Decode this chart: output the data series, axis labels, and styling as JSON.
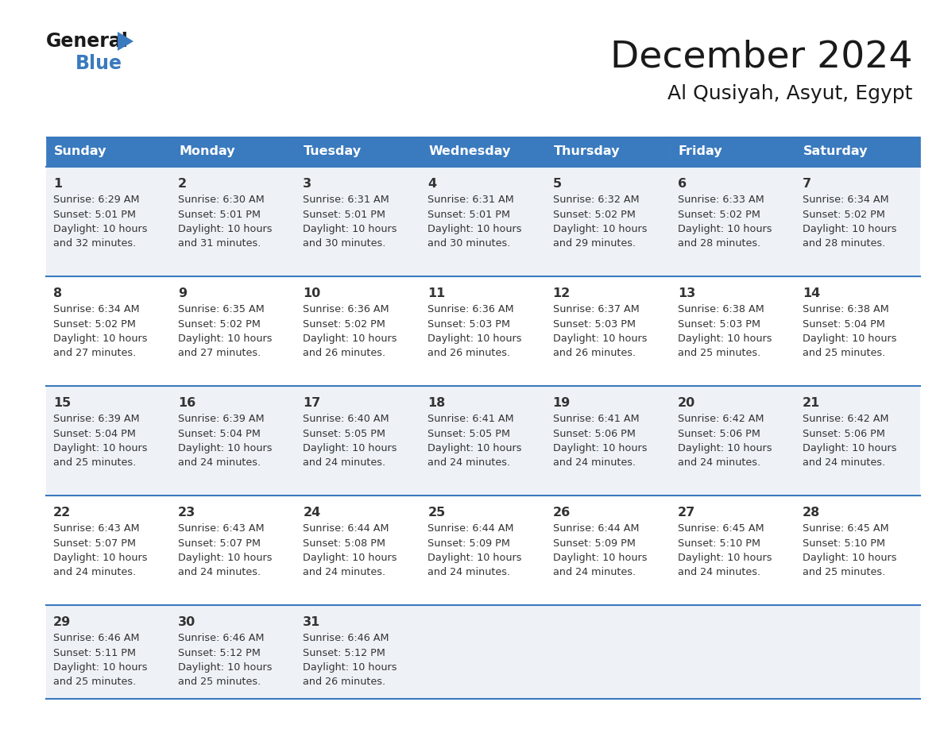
{
  "title": "December 2024",
  "subtitle": "Al Qusiyah, Asyut, Egypt",
  "days_of_week": [
    "Sunday",
    "Monday",
    "Tuesday",
    "Wednesday",
    "Thursday",
    "Friday",
    "Saturday"
  ],
  "header_bg": "#3a7abf",
  "header_text": "#ffffff",
  "row_bg_odd": "#eef2f7",
  "row_bg_even": "#ffffff",
  "border_color": "#3a7abf",
  "text_color": "#333333",
  "day_num_color": "#333333",
  "calendar_data": [
    [
      {
        "day": 1,
        "sunrise": "6:29 AM",
        "sunset": "5:01 PM",
        "daylight_h": "10 hours",
        "daylight_m": "and 32 minutes."
      },
      {
        "day": 2,
        "sunrise": "6:30 AM",
        "sunset": "5:01 PM",
        "daylight_h": "10 hours",
        "daylight_m": "and 31 minutes."
      },
      {
        "day": 3,
        "sunrise": "6:31 AM",
        "sunset": "5:01 PM",
        "daylight_h": "10 hours",
        "daylight_m": "and 30 minutes."
      },
      {
        "day": 4,
        "sunrise": "6:31 AM",
        "sunset": "5:01 PM",
        "daylight_h": "10 hours",
        "daylight_m": "and 30 minutes."
      },
      {
        "day": 5,
        "sunrise": "6:32 AM",
        "sunset": "5:02 PM",
        "daylight_h": "10 hours",
        "daylight_m": "and 29 minutes."
      },
      {
        "day": 6,
        "sunrise": "6:33 AM",
        "sunset": "5:02 PM",
        "daylight_h": "10 hours",
        "daylight_m": "and 28 minutes."
      },
      {
        "day": 7,
        "sunrise": "6:34 AM",
        "sunset": "5:02 PM",
        "daylight_h": "10 hours",
        "daylight_m": "and 28 minutes."
      }
    ],
    [
      {
        "day": 8,
        "sunrise": "6:34 AM",
        "sunset": "5:02 PM",
        "daylight_h": "10 hours",
        "daylight_m": "and 27 minutes."
      },
      {
        "day": 9,
        "sunrise": "6:35 AM",
        "sunset": "5:02 PM",
        "daylight_h": "10 hours",
        "daylight_m": "and 27 minutes."
      },
      {
        "day": 10,
        "sunrise": "6:36 AM",
        "sunset": "5:02 PM",
        "daylight_h": "10 hours",
        "daylight_m": "and 26 minutes."
      },
      {
        "day": 11,
        "sunrise": "6:36 AM",
        "sunset": "5:03 PM",
        "daylight_h": "10 hours",
        "daylight_m": "and 26 minutes."
      },
      {
        "day": 12,
        "sunrise": "6:37 AM",
        "sunset": "5:03 PM",
        "daylight_h": "10 hours",
        "daylight_m": "and 26 minutes."
      },
      {
        "day": 13,
        "sunrise": "6:38 AM",
        "sunset": "5:03 PM",
        "daylight_h": "10 hours",
        "daylight_m": "and 25 minutes."
      },
      {
        "day": 14,
        "sunrise": "6:38 AM",
        "sunset": "5:04 PM",
        "daylight_h": "10 hours",
        "daylight_m": "and 25 minutes."
      }
    ],
    [
      {
        "day": 15,
        "sunrise": "6:39 AM",
        "sunset": "5:04 PM",
        "daylight_h": "10 hours",
        "daylight_m": "and 25 minutes."
      },
      {
        "day": 16,
        "sunrise": "6:39 AM",
        "sunset": "5:04 PM",
        "daylight_h": "10 hours",
        "daylight_m": "and 24 minutes."
      },
      {
        "day": 17,
        "sunrise": "6:40 AM",
        "sunset": "5:05 PM",
        "daylight_h": "10 hours",
        "daylight_m": "and 24 minutes."
      },
      {
        "day": 18,
        "sunrise": "6:41 AM",
        "sunset": "5:05 PM",
        "daylight_h": "10 hours",
        "daylight_m": "and 24 minutes."
      },
      {
        "day": 19,
        "sunrise": "6:41 AM",
        "sunset": "5:06 PM",
        "daylight_h": "10 hours",
        "daylight_m": "and 24 minutes."
      },
      {
        "day": 20,
        "sunrise": "6:42 AM",
        "sunset": "5:06 PM",
        "daylight_h": "10 hours",
        "daylight_m": "and 24 minutes."
      },
      {
        "day": 21,
        "sunrise": "6:42 AM",
        "sunset": "5:06 PM",
        "daylight_h": "10 hours",
        "daylight_m": "and 24 minutes."
      }
    ],
    [
      {
        "day": 22,
        "sunrise": "6:43 AM",
        "sunset": "5:07 PM",
        "daylight_h": "10 hours",
        "daylight_m": "and 24 minutes."
      },
      {
        "day": 23,
        "sunrise": "6:43 AM",
        "sunset": "5:07 PM",
        "daylight_h": "10 hours",
        "daylight_m": "and 24 minutes."
      },
      {
        "day": 24,
        "sunrise": "6:44 AM",
        "sunset": "5:08 PM",
        "daylight_h": "10 hours",
        "daylight_m": "and 24 minutes."
      },
      {
        "day": 25,
        "sunrise": "6:44 AM",
        "sunset": "5:09 PM",
        "daylight_h": "10 hours",
        "daylight_m": "and 24 minutes."
      },
      {
        "day": 26,
        "sunrise": "6:44 AM",
        "sunset": "5:09 PM",
        "daylight_h": "10 hours",
        "daylight_m": "and 24 minutes."
      },
      {
        "day": 27,
        "sunrise": "6:45 AM",
        "sunset": "5:10 PM",
        "daylight_h": "10 hours",
        "daylight_m": "and 24 minutes."
      },
      {
        "day": 28,
        "sunrise": "6:45 AM",
        "sunset": "5:10 PM",
        "daylight_h": "10 hours",
        "daylight_m": "and 25 minutes."
      }
    ],
    [
      {
        "day": 29,
        "sunrise": "6:46 AM",
        "sunset": "5:11 PM",
        "daylight_h": "10 hours",
        "daylight_m": "and 25 minutes."
      },
      {
        "day": 30,
        "sunrise": "6:46 AM",
        "sunset": "5:12 PM",
        "daylight_h": "10 hours",
        "daylight_m": "and 25 minutes."
      },
      {
        "day": 31,
        "sunrise": "6:46 AM",
        "sunset": "5:12 PM",
        "daylight_h": "10 hours",
        "daylight_m": "and 26 minutes."
      },
      null,
      null,
      null,
      null
    ]
  ]
}
